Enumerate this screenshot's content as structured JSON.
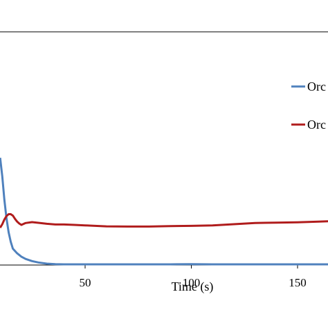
{
  "chart_data": {
    "type": "line",
    "title": "",
    "xlabel": "Time (s)",
    "ylabel": "",
    "xlim": [
      10,
      175
    ],
    "ylim": [
      0,
      1
    ],
    "x_ticks": [
      50,
      100,
      150
    ],
    "grid": false,
    "legend_position": "right",
    "series": [
      {
        "name": "Orc",
        "color": "#4f81bd",
        "x": [
          10,
          11,
          12,
          13,
          14,
          15,
          16,
          18,
          20,
          22,
          25,
          28,
          32,
          36,
          40,
          45,
          50,
          60,
          70,
          80,
          90,
          100,
          110,
          120,
          130,
          140,
          150,
          160,
          170,
          175
        ],
        "y": [
          0.46,
          0.38,
          0.28,
          0.2,
          0.14,
          0.1,
          0.07,
          0.05,
          0.036,
          0.026,
          0.017,
          0.011,
          0.006,
          0.004,
          0.003,
          0.003,
          0.003,
          0.003,
          0.003,
          0.003,
          0.003,
          0.004,
          0.003,
          0.003,
          0.003,
          0.003,
          0.003,
          0.003,
          0.003,
          0.003
        ]
      },
      {
        "name": "Orc",
        "color": "#b01c1c",
        "x": [
          10,
          11,
          12,
          13,
          14,
          15,
          16,
          17,
          18,
          19,
          20,
          22,
          25,
          28,
          32,
          36,
          40,
          45,
          50,
          60,
          70,
          80,
          90,
          100,
          110,
          120,
          130,
          140,
          150,
          160,
          165,
          170,
          175
        ],
        "y": [
          0.16,
          0.175,
          0.195,
          0.21,
          0.218,
          0.218,
          0.212,
          0.198,
          0.186,
          0.178,
          0.172,
          0.18,
          0.184,
          0.181,
          0.177,
          0.174,
          0.174,
          0.172,
          0.17,
          0.166,
          0.165,
          0.165,
          0.167,
          0.168,
          0.17,
          0.175,
          0.18,
          0.182,
          0.183,
          0.186,
          0.188,
          0.19,
          0.19
        ]
      }
    ]
  }
}
